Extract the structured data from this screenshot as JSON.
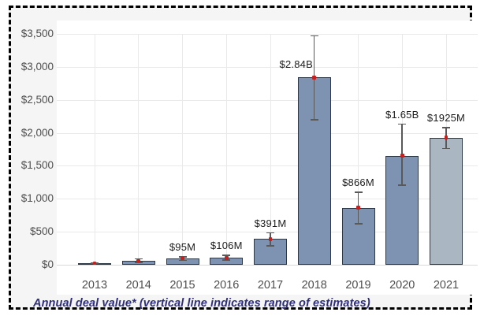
{
  "caption": {
    "text": "Annual deal value* (vertical line indicates range of estimates)"
  },
  "colors": {
    "bar_fill": "#7e92b1",
    "bar_fill_final_year": "#abb6c3",
    "bar_border": "#2c3846",
    "error_line": "#595959",
    "estimate_marker": "#c42020",
    "gridline": "#e9e9e9",
    "baseline": "#d9d9d9",
    "plot_background": "#ffffff",
    "panel_background": "#f4f5f4",
    "axis_text": "#4f4f4f",
    "value_label_text": "#1c1c1c",
    "caption_text": "#2e2e7a",
    "frame_border": "#000000"
  },
  "chart_data": {
    "type": "bar",
    "title": "Annual deal value",
    "caption": "Annual deal value* (vertical line indicates range of estimates)",
    "unit": "US$ millions",
    "ylim": [
      0,
      3500
    ],
    "grid": true,
    "legend": "none",
    "error_bars": "range of estimates",
    "yticks": [
      {
        "value": 0,
        "label": "$0"
      },
      {
        "value": 500,
        "label": "$500"
      },
      {
        "value": 1000,
        "label": "$1,000"
      },
      {
        "value": 1500,
        "label": "$1,500"
      },
      {
        "value": 2000,
        "label": "$2,000"
      },
      {
        "value": 2500,
        "label": "$2,500"
      },
      {
        "value": 3000,
        "label": "$3,000"
      },
      {
        "value": 3500,
        "label": "$3,500"
      }
    ],
    "categories": [
      "2013",
      "2014",
      "2015",
      "2016",
      "2017",
      "2018",
      "2019",
      "2020",
      "2021"
    ],
    "points": [
      {
        "year": "2013",
        "value": 25,
        "range_low": 15,
        "range_high": 35,
        "label": ""
      },
      {
        "year": "2014",
        "value": 60,
        "range_low": 25,
        "range_high": 100,
        "label": ""
      },
      {
        "year": "2015",
        "value": 95,
        "range_low": 55,
        "range_high": 130,
        "label": "$95M"
      },
      {
        "year": "2016",
        "value": 106,
        "range_low": 65,
        "range_high": 150,
        "label": "$106M"
      },
      {
        "year": "2017",
        "value": 391,
        "range_low": 275,
        "range_high": 490,
        "label": "$391M"
      },
      {
        "year": "2018",
        "value": 2840,
        "range_low": 2190,
        "range_high": 3480,
        "label": "$2.84B"
      },
      {
        "year": "2019",
        "value": 866,
        "range_low": 610,
        "range_high": 1110,
        "label": "$866M"
      },
      {
        "year": "2020",
        "value": 1650,
        "range_low": 1195,
        "range_high": 2140,
        "label": "$1.65B"
      },
      {
        "year": "2021",
        "value": 1925,
        "range_low": 1755,
        "range_high": 2090,
        "label": "$1925M"
      }
    ]
  }
}
